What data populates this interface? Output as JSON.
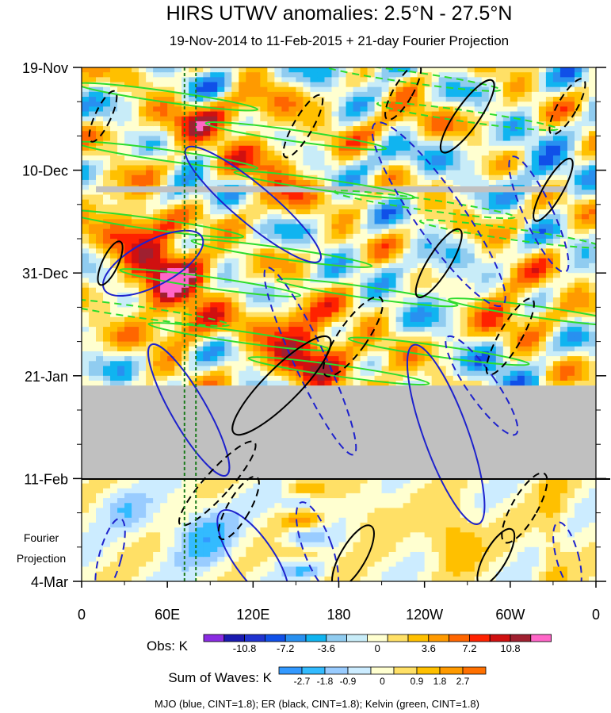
{
  "chart_data": {
    "type": "heatmap",
    "title": "HIRS UTWV anomalies: 2.5°N - 27.5°N",
    "subtitle": "19-Nov-2014 to 11-Feb-2015 + 21-day Fourier Projection",
    "x_ticks": [
      "0",
      "60E",
      "120E",
      "180",
      "120W",
      "60W",
      "0"
    ],
    "x_range_deg_east": [
      0,
      360
    ],
    "y_ticks": [
      "19-Nov",
      "10-Dec",
      "31-Dec",
      "21-Jan",
      "11-Feb",
      "4-Mar"
    ],
    "y_range_days": [
      0,
      105
    ],
    "projection_label": [
      "Fourier",
      "Projection"
    ],
    "missing_periods_days": [
      [
        24,
        26
      ],
      [
        64,
        83
      ]
    ],
    "projection_start_day": 84,
    "reference_longitudes_deg": [
      72,
      80
    ],
    "obs_colorbar": {
      "label": "Obs: K",
      "tick_labels": [
        "-10.8",
        "-7.2",
        "-3.6",
        "0",
        "3.6",
        "7.2",
        "10.8"
      ],
      "colors": [
        "#8a2be2",
        "#1a1ab0",
        "#2033d0",
        "#1050e8",
        "#2890f0",
        "#10b4f0",
        "#90ccf0",
        "#c8ecf8",
        "#ffffd0",
        "#ffe066",
        "#ffc000",
        "#ff9a00",
        "#ff6600",
        "#ff2200",
        "#d01010",
        "#a02030",
        "#ff66c8"
      ]
    },
    "waves_colorbar": {
      "label": "Sum of Waves: K",
      "tick_labels": [
        "-2.7",
        "-1.8",
        "-0.9",
        "0",
        "0.9",
        "1.8",
        "2.7"
      ],
      "colors": [
        "#3399ff",
        "#33bbff",
        "#99ccff",
        "#ccecff",
        "#ffffd0",
        "#ffe066",
        "#ffc000",
        "#ff9a00",
        "#ff7000"
      ]
    },
    "contours_legend": "MJO (blue, CINT=1.8); ER (black, CINT=1.8); Kelvin (green, CINT=1.8)",
    "series_colors": {
      "mjo": "#1e22cc",
      "er": "#000000",
      "kelvin": "#2ddc2d",
      "reference": "#1a7a1a",
      "missing": "#c0c0c0"
    }
  }
}
